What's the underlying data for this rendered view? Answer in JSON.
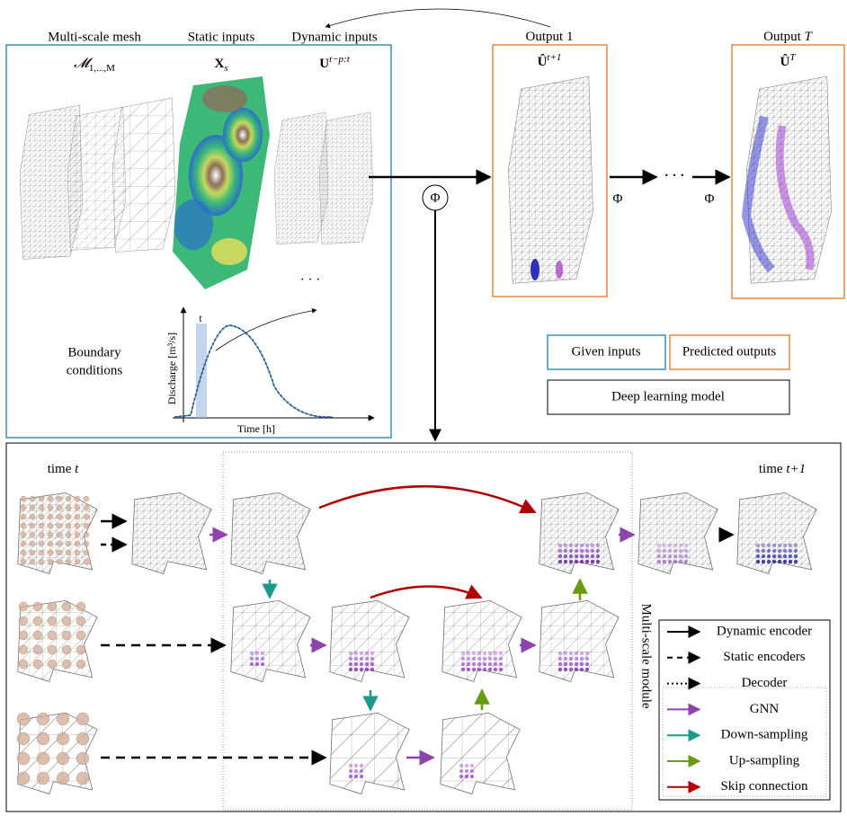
{
  "top": {
    "columns": [
      {
        "title": "Multi-scale mesh",
        "math": {
          "base": "𝓜",
          "sub": "1,...,M"
        }
      },
      {
        "title": "Static inputs",
        "math": {
          "base": "X",
          "sub": "s"
        }
      },
      {
        "title": "Dynamic inputs",
        "math": {
          "base": "U",
          "sup": "t−p:t"
        }
      }
    ],
    "outputs": [
      {
        "title": {
          "text": "Output",
          "index": "1"
        },
        "math": {
          "base": "Û",
          "sup": "t+1"
        }
      },
      {
        "title": {
          "text": "Output",
          "index": "T"
        },
        "math": {
          "base": "Û",
          "sup": "T"
        }
      }
    ],
    "model_symbol": "Φ",
    "step_symbols": [
      "Φ",
      "Φ"
    ],
    "ellipsis": [
      "· · ·",
      "· · ·"
    ],
    "boundary": {
      "label": [
        "Boundary",
        "conditions"
      ],
      "y_label": "Discharge [m³/s]",
      "x_label": "Time [h]",
      "marker": "t"
    },
    "legend": {
      "given": "Given inputs",
      "predicted": "Predicted outputs",
      "model": "Deep learning model"
    }
  },
  "bottom": {
    "time_start": {
      "text": "time",
      "var": "t"
    },
    "time_end": {
      "text": "time",
      "var": "t+1"
    },
    "module": "Multi-scale module",
    "legend": [
      "Dynamic encoder",
      "Static encoders",
      "Decoder",
      "GNN",
      "Down-sampling",
      "Up-sampling",
      "Skip connection"
    ]
  }
}
